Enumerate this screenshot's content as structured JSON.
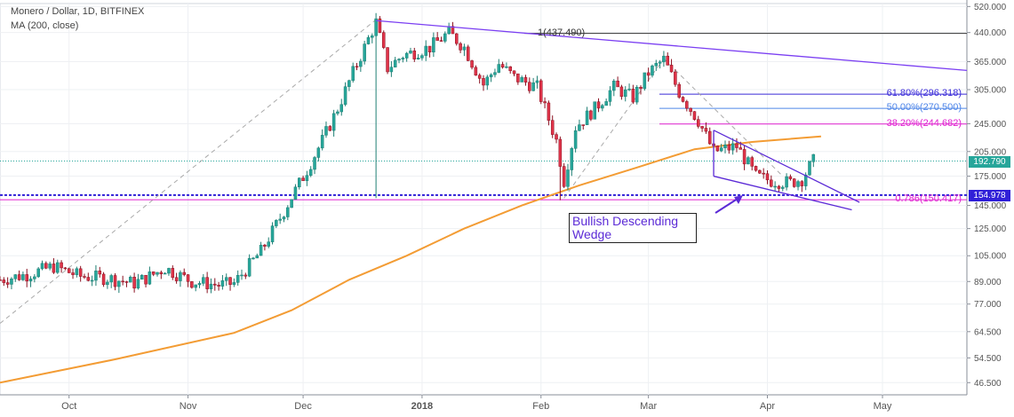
{
  "legend": {
    "title": "Monero / Dollar, 1D, BITFINEX",
    "indicator": "MA (200, close)"
  },
  "annotation": {
    "text": "Bullish Descending Wedge"
  },
  "fib_levels": [
    {
      "label": "1(437.490)",
      "value": 437.49,
      "color": "#333333"
    },
    {
      "label": "61.80%(296.318)",
      "value": 296.318,
      "color": "#3a2bd8"
    },
    {
      "label": "50.00%(270.500)",
      "value": 270.5,
      "color": "#4f86e8"
    },
    {
      "label": "38.20%(244.682)",
      "value": 244.682,
      "color": "#e020d0"
    },
    {
      "label": "0.786(150.417)",
      "value": 150.417,
      "color": "#e020d0"
    }
  ],
  "price_tags": [
    {
      "label": "192.790",
      "value": 192.79,
      "color": "#26a69a"
    },
    {
      "label": "154.978",
      "value": 154.978,
      "color": "#3020d8"
    }
  ],
  "chart_data": {
    "type": "line",
    "title": "Monero / Dollar, 1D, BITFINEX",
    "scale": "log",
    "ylim": [
      43,
      530
    ],
    "y_ticks": [
      520,
      440,
      365,
      305,
      245,
      205,
      175,
      145,
      125,
      105,
      89,
      77,
      64.5,
      54.5,
      46.5
    ],
    "y_tick_labels": [
      "520.000",
      "440.000",
      "365.000",
      "305.000",
      "245.000",
      "205.000",
      "175.000",
      "145.000",
      "125.000",
      "105.000",
      "89.000",
      "77.000",
      "64.500",
      "54.500",
      "46.500"
    ],
    "x_ticks": [
      {
        "label": "Oct",
        "date": "2017-10-01"
      },
      {
        "label": "Nov",
        "date": "2017-11-01"
      },
      {
        "label": "Dec",
        "date": "2017-12-01"
      },
      {
        "label": "2018",
        "date": "2018-01-01"
      },
      {
        "label": "Feb",
        "date": "2018-02-01"
      },
      {
        "label": "Mar",
        "date": "2018-03-01"
      },
      {
        "label": "Apr",
        "date": "2018-04-01"
      },
      {
        "label": "May",
        "date": "2018-05-01"
      }
    ],
    "xlim": [
      "2017-09-13",
      "2018-05-23"
    ],
    "price_path": [
      [
        "2017-09-13",
        90
      ],
      [
        "2017-09-20",
        93
      ],
      [
        "2017-09-27",
        98
      ],
      [
        "2017-10-04",
        92
      ],
      [
        "2017-10-11",
        91
      ],
      [
        "2017-10-18",
        88
      ],
      [
        "2017-10-22",
        92
      ],
      [
        "2017-10-26",
        97
      ],
      [
        "2017-11-02",
        89
      ],
      [
        "2017-11-09",
        87
      ],
      [
        "2017-11-13",
        88
      ],
      [
        "2017-11-16",
        96
      ],
      [
        "2017-11-20",
        108
      ],
      [
        "2017-11-24",
        128
      ],
      [
        "2017-11-28",
        153
      ],
      [
        "2017-12-02",
        182
      ],
      [
        "2017-12-06",
        220
      ],
      [
        "2017-12-10",
        270
      ],
      [
        "2017-12-14",
        340
      ],
      [
        "2017-12-17",
        400
      ],
      [
        "2017-12-20",
        470
      ],
      [
        "2017-12-23",
        350
      ],
      [
        "2017-12-27",
        380
      ],
      [
        "2018-01-03",
        400
      ],
      [
        "2018-01-08",
        440
      ],
      [
        "2018-01-12",
        400
      ],
      [
        "2018-01-17",
        315
      ],
      [
        "2018-01-21",
        360
      ],
      [
        "2018-01-25",
        330
      ],
      [
        "2018-01-31",
        310
      ],
      [
        "2018-02-05",
        220
      ],
      [
        "2018-02-07",
        170
      ],
      [
        "2018-02-10",
        240
      ],
      [
        "2018-02-15",
        270
      ],
      [
        "2018-02-20",
        310
      ],
      [
        "2018-02-25",
        290
      ],
      [
        "2018-03-01",
        340
      ],
      [
        "2018-03-05",
        370
      ],
      [
        "2018-03-09",
        300
      ],
      [
        "2018-03-14",
        250
      ],
      [
        "2018-03-18",
        205
      ],
      [
        "2018-03-24",
        212
      ],
      [
        "2018-03-29",
        175
      ],
      [
        "2018-04-02",
        170
      ],
      [
        "2018-04-07",
        168
      ],
      [
        "2018-04-10",
        172
      ],
      [
        "2018-04-13",
        193
      ]
    ],
    "ma200": [
      [
        "2017-09-13",
        46.5
      ],
      [
        "2017-10-13",
        54
      ],
      [
        "2017-11-13",
        64
      ],
      [
        "2017-11-28",
        74
      ],
      [
        "2017-12-13",
        90
      ],
      [
        "2017-12-28",
        105
      ],
      [
        "2018-01-12",
        125
      ],
      [
        "2018-01-27",
        145
      ],
      [
        "2018-02-11",
        165
      ],
      [
        "2018-02-26",
        185
      ],
      [
        "2018-03-13",
        208
      ],
      [
        "2018-03-28",
        218
      ],
      [
        "2018-04-15",
        226
      ]
    ],
    "trendlines": [
      {
        "name": "upper-resistance",
        "from": [
          "2017-12-20",
          475
        ],
        "to": [
          "2018-05-23",
          345
        ],
        "color": "#7b3ff2"
      },
      {
        "name": "wedge-upper",
        "from": [
          "2018-03-18",
          235
        ],
        "to": [
          "2018-04-25",
          148
        ],
        "color": "#5b2ad6"
      },
      {
        "name": "wedge-lower",
        "from": [
          "2018-03-18",
          175
        ],
        "to": [
          "2018-04-23",
          141
        ],
        "color": "#5b2ad6"
      }
    ],
    "grid": true
  }
}
